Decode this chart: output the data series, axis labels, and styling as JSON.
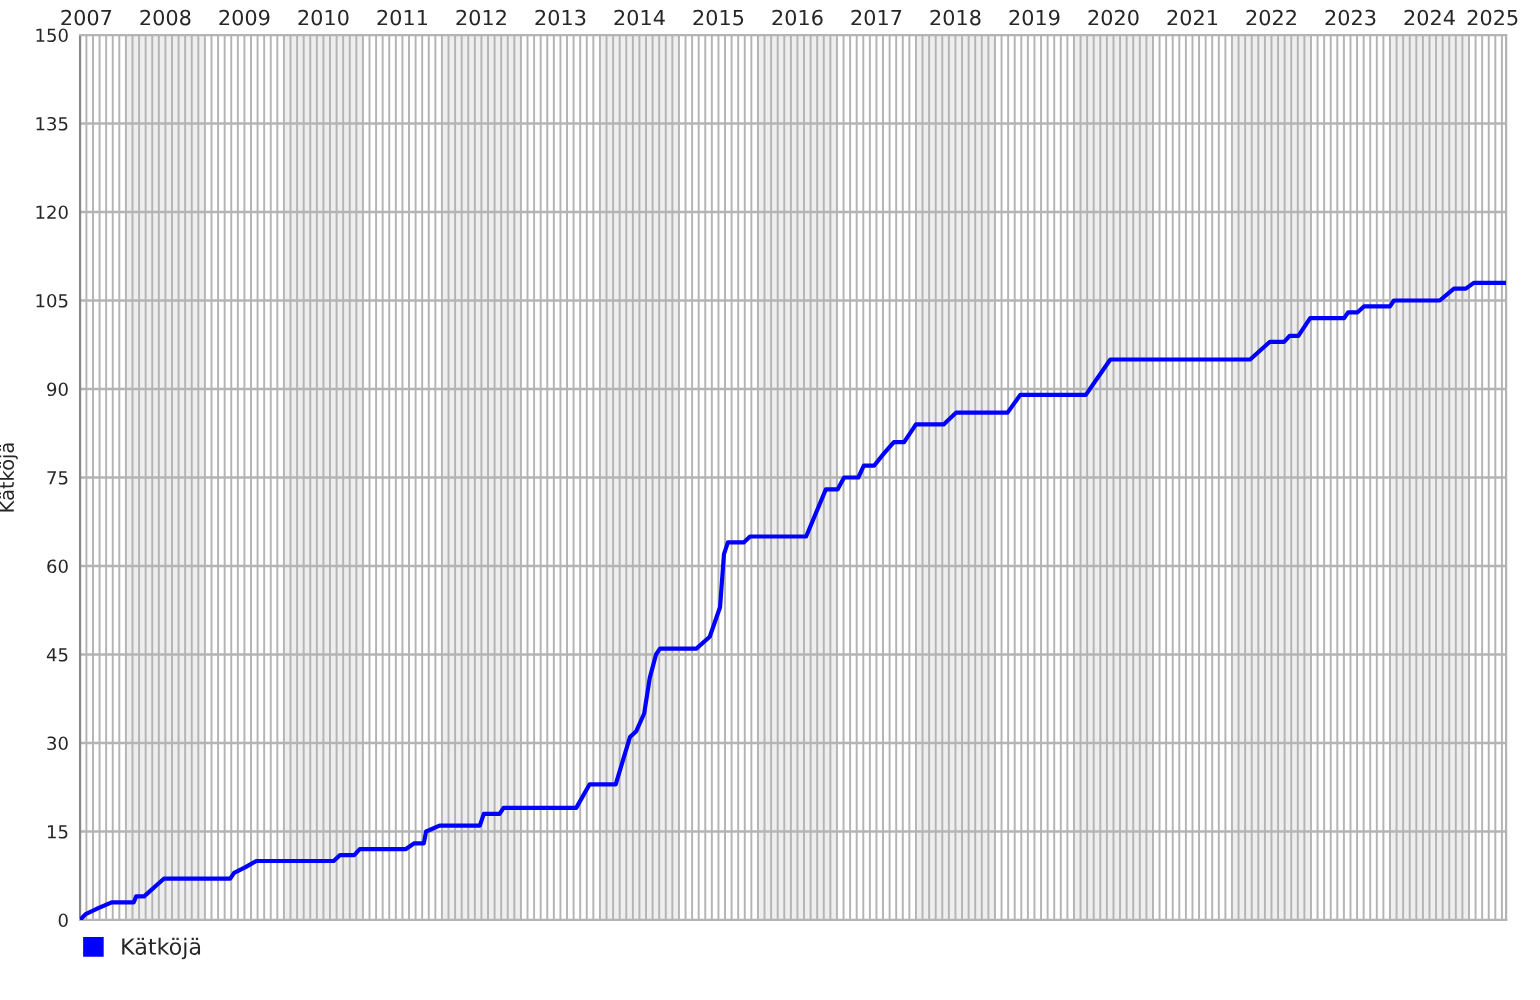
{
  "chart_data": {
    "type": "line",
    "ylabel": "Kätköjä",
    "series": [
      {
        "name": "Kätköjä",
        "color": "#0000ff",
        "x": [
          2007.42,
          2007.49,
          2007.65,
          2007.82,
          2008.1,
          2008.13,
          2008.23,
          2008.48,
          2009.32,
          2009.37,
          2009.52,
          2009.65,
          2010.63,
          2010.71,
          2010.89,
          2010.96,
          2011.54,
          2011.65,
          2011.77,
          2011.8,
          2011.97,
          2012.48,
          2012.53,
          2012.73,
          2012.78,
          2013.7,
          2013.87,
          2014.2,
          2014.38,
          2014.46,
          2014.56,
          2014.63,
          2014.71,
          2014.76,
          2015.22,
          2015.39,
          2015.52,
          2015.57,
          2015.62,
          2015.82,
          2015.9,
          2016.61,
          2016.86,
          2017.01,
          2017.09,
          2017.27,
          2017.34,
          2017.47,
          2017.59,
          2017.72,
          2017.85,
          2018.0,
          2018.35,
          2018.51,
          2019.16,
          2019.32,
          2020.15,
          2020.46,
          2022.23,
          2022.48,
          2022.66,
          2022.73,
          2022.84,
          2022.99,
          2023.42,
          2023.47,
          2023.59,
          2023.67,
          2024.0,
          2024.05,
          2024.63,
          2024.81,
          2024.96,
          2025.06,
          2025.47
        ],
        "values": [
          0,
          1,
          2,
          3,
          3,
          4,
          4,
          7,
          7,
          8,
          9,
          10,
          10,
          11,
          11,
          12,
          12,
          13,
          13,
          15,
          16,
          16,
          18,
          18,
          19,
          19,
          23,
          23,
          31,
          32,
          35,
          41,
          45,
          46,
          46,
          48,
          53,
          62,
          64,
          64,
          65,
          65,
          73,
          73,
          75,
          75,
          77,
          77,
          79,
          81,
          81,
          84,
          84,
          86,
          86,
          89,
          89,
          95,
          95,
          98,
          98,
          99,
          99,
          102,
          102,
          103,
          103,
          104,
          104,
          105,
          105,
          107,
          107,
          108,
          108
        ]
      }
    ],
    "xlim": [
      2007.42,
      2025.47
    ],
    "xticks": [
      {
        "value": 2007.5,
        "label": "2007"
      },
      {
        "value": 2008.5,
        "label": "2008"
      },
      {
        "value": 2009.5,
        "label": "2009"
      },
      {
        "value": 2010.5,
        "label": "2010"
      },
      {
        "value": 2011.5,
        "label": "2011"
      },
      {
        "value": 2012.5,
        "label": "2012"
      },
      {
        "value": 2013.5,
        "label": "2013"
      },
      {
        "value": 2014.5,
        "label": "2014"
      },
      {
        "value": 2015.5,
        "label": "2015"
      },
      {
        "value": 2016.5,
        "label": "2016"
      },
      {
        "value": 2017.5,
        "label": "2017"
      },
      {
        "value": 2018.5,
        "label": "2018"
      },
      {
        "value": 2019.5,
        "label": "2019"
      },
      {
        "value": 2020.5,
        "label": "2020"
      },
      {
        "value": 2021.5,
        "label": "2021"
      },
      {
        "value": 2022.5,
        "label": "2022"
      },
      {
        "value": 2023.5,
        "label": "2023"
      },
      {
        "value": 2024.5,
        "label": "2024"
      },
      {
        "value": 2025.3,
        "label": "2025"
      }
    ],
    "ylim": [
      0,
      150
    ],
    "yticks": [
      0,
      15,
      30,
      45,
      60,
      75,
      90,
      105,
      120,
      135,
      150
    ],
    "bands": [
      {
        "axis": "x",
        "from": 2008,
        "to": 2009,
        "color": "#eeeeee"
      },
      {
        "axis": "x",
        "from": 2010,
        "to": 2011,
        "color": "#eeeeee"
      },
      {
        "axis": "x",
        "from": 2012,
        "to": 2013,
        "color": "#eeeeee"
      },
      {
        "axis": "x",
        "from": 2014,
        "to": 2015,
        "color": "#eeeeee"
      },
      {
        "axis": "x",
        "from": 2016,
        "to": 2017,
        "color": "#eeeeee"
      },
      {
        "axis": "x",
        "from": 2018,
        "to": 2019,
        "color": "#eeeeee"
      },
      {
        "axis": "x",
        "from": 2020,
        "to": 2021,
        "color": "#eeeeee"
      },
      {
        "axis": "x",
        "from": 2022,
        "to": 2023,
        "color": "#eeeeee"
      },
      {
        "axis": "x",
        "from": 2024,
        "to": 2025,
        "color": "#eeeeee"
      }
    ],
    "grid": true,
    "legend": "bottom left",
    "marker": "none",
    "line_style": "solid"
  }
}
